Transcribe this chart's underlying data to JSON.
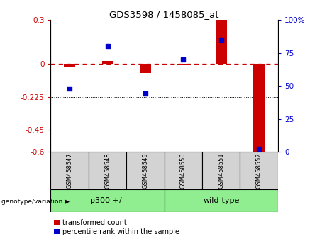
{
  "title": "GDS3598 / 1458085_at",
  "samples": [
    "GSM458547",
    "GSM458548",
    "GSM458549",
    "GSM458550",
    "GSM458551",
    "GSM458552"
  ],
  "red_values": [
    -0.02,
    0.02,
    -0.06,
    -0.01,
    0.3,
    -0.6
  ],
  "blue_values": [
    48,
    80,
    44,
    70,
    85,
    2
  ],
  "ylim_left": [
    -0.6,
    0.3
  ],
  "ylim_right": [
    0,
    100
  ],
  "yticks_left": [
    0.3,
    0,
    -0.225,
    -0.45,
    -0.6
  ],
  "yticks_right": [
    100,
    75,
    50,
    25,
    0
  ],
  "hlines": [
    -0.225,
    -0.45
  ],
  "red_color": "#cc0000",
  "blue_color": "#0000cc",
  "group1_label": "p300 +/-",
  "group2_label": "wild-type",
  "group_label_prefix": "genotype/variation",
  "legend_red": "transformed count",
  "legend_blue": "percentile rank within the sample",
  "bar_width": 0.3,
  "blue_square_size": 18,
  "group_color": "#90ee90",
  "bg_color": "#ffffff",
  "tick_area_color": "#d3d3d3"
}
